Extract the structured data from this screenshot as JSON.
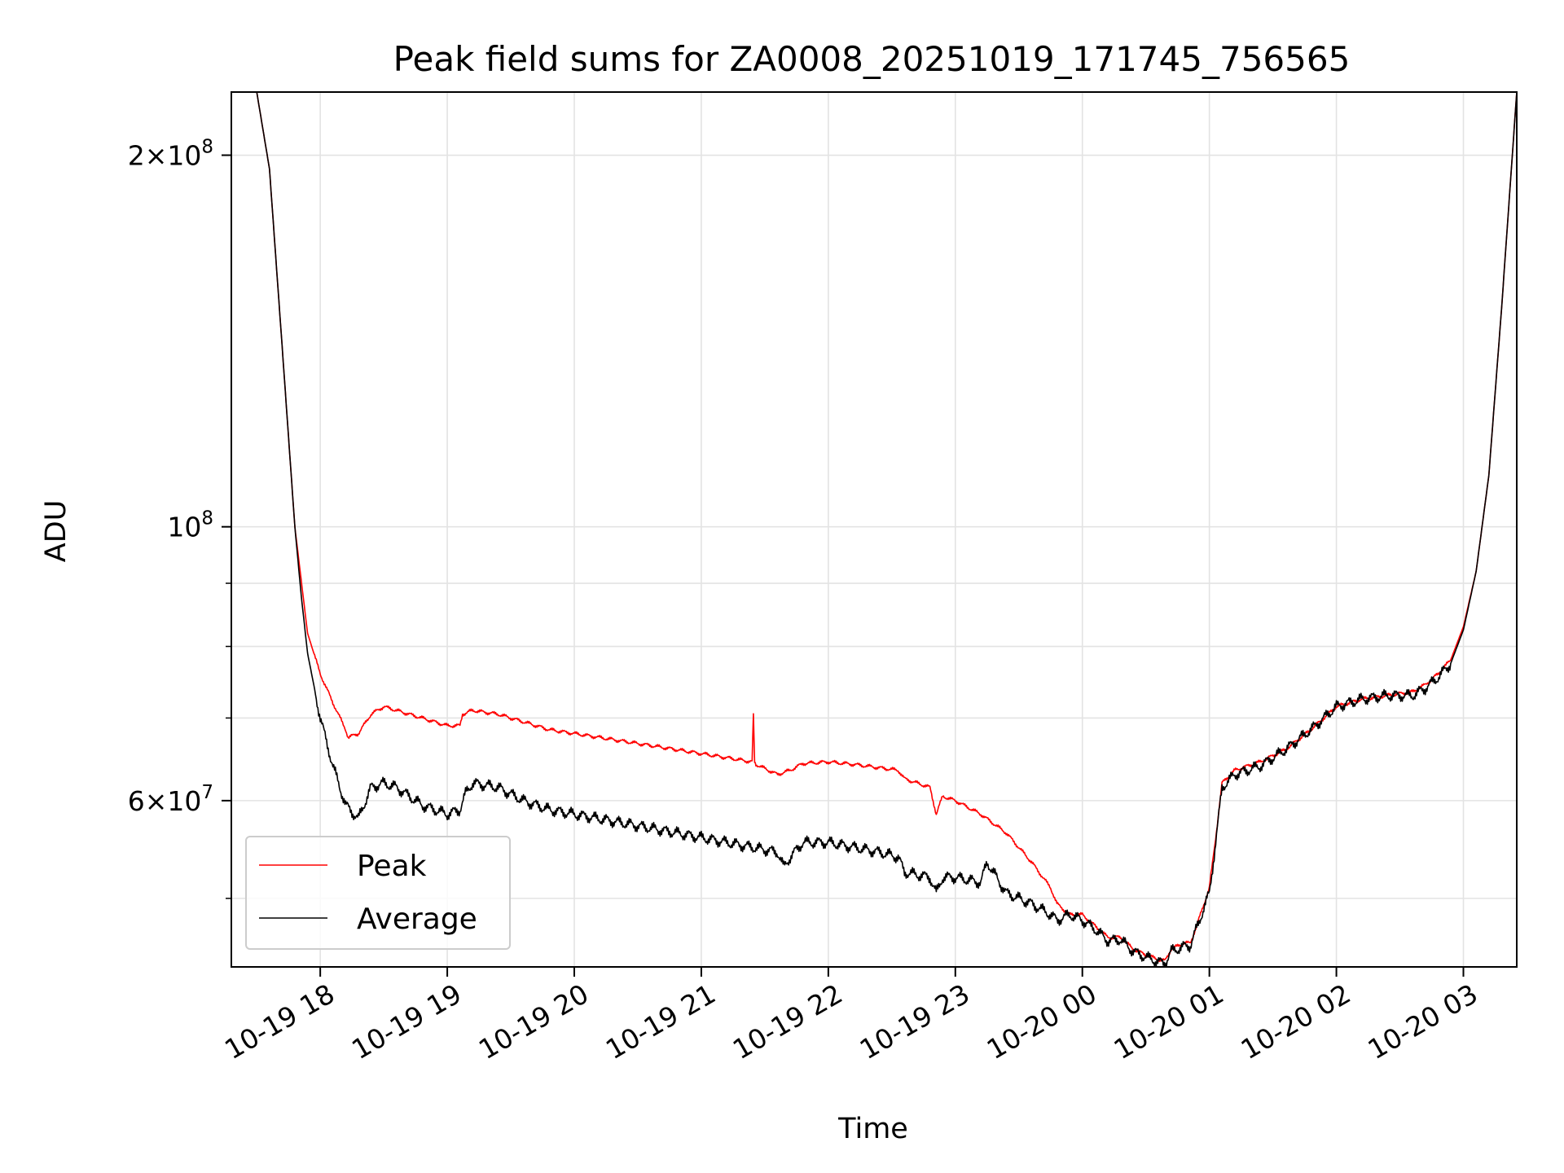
{
  "chart_data": {
    "type": "line",
    "title": "Peak field sums for ZA0008_20251019_171745_756565",
    "xlabel": "Time",
    "ylabel": "ADU",
    "yscale": "log",
    "grid": true,
    "legend_position": "lower-left",
    "x_unit": "hours since 2025-10-19 00:00",
    "xlim": [
      17.3,
      27.42
    ],
    "ylim": [
      44000000,
      225000000
    ],
    "x_ticks": [
      {
        "value": 18,
        "label": "10-19 18"
      },
      {
        "value": 19,
        "label": "10-19 19"
      },
      {
        "value": 20,
        "label": "10-19 20"
      },
      {
        "value": 21,
        "label": "10-19 21"
      },
      {
        "value": 22,
        "label": "10-19 22"
      },
      {
        "value": 23,
        "label": "10-19 23"
      },
      {
        "value": 24,
        "label": "10-20 00"
      },
      {
        "value": 25,
        "label": "10-20 01"
      },
      {
        "value": 26,
        "label": "10-20 02"
      },
      {
        "value": 27,
        "label": "10-20 03"
      }
    ],
    "y_ticks": [
      {
        "value": 200000000,
        "mantissa": "2",
        "times": "×",
        "base": "10",
        "exponent": "8"
      },
      {
        "value": 100000000,
        "mantissa": "",
        "times": "",
        "base": "10",
        "exponent": "8"
      },
      {
        "value": 60000000,
        "mantissa": "6",
        "times": "×",
        "base": "10",
        "exponent": "7"
      }
    ],
    "y_minor_ticks": [
      50000000,
      70000000,
      80000000,
      90000000
    ],
    "series": [
      {
        "name": "Peak",
        "color": "#ff0000",
        "x": [
          17.3,
          17.5,
          17.6,
          17.7,
          17.8,
          17.9,
          18.0,
          18.1,
          18.2,
          18.22,
          18.3,
          18.4,
          18.5,
          18.6,
          18.7,
          18.8,
          18.9,
          19.0,
          19.1,
          19.12,
          19.2,
          19.4,
          19.6,
          19.8,
          20.0,
          20.2,
          20.4,
          20.6,
          20.8,
          21.0,
          21.2,
          21.4,
          21.41,
          21.42,
          21.43,
          21.6,
          21.7,
          21.8,
          22.0,
          22.2,
          22.4,
          22.55,
          22.6,
          22.8,
          22.85,
          22.9,
          23.0,
          23.2,
          23.4,
          23.6,
          23.75,
          23.8,
          23.9,
          24.0,
          24.1,
          24.2,
          24.3,
          24.4,
          24.5,
          24.6,
          24.65,
          24.7,
          24.8,
          24.85,
          24.9,
          25.0,
          25.05,
          25.1,
          25.2,
          25.4,
          25.6,
          25.8,
          26.0,
          26.2,
          26.4,
          26.6,
          26.7,
          26.8,
          26.9,
          27.0,
          27.1,
          27.2,
          27.3,
          27.42
        ],
        "y": [
          225000000,
          225000000,
          195000000,
          140000000,
          100000000,
          82000000,
          76000000,
          72000000,
          68500000,
          67500000,
          68000000,
          70500000,
          71500000,
          71000000,
          70500000,
          70000000,
          69500000,
          69000000,
          69000000,
          70500000,
          71000000,
          70500000,
          69500000,
          68500000,
          68000000,
          67500000,
          67000000,
          66500000,
          66000000,
          65500000,
          65000000,
          64500000,
          70500000,
          64500000,
          64200000,
          63000000,
          63500000,
          64300000,
          64500000,
          64200000,
          63800000,
          63500000,
          62500000,
          61500000,
          58500000,
          60500000,
          60000000,
          58500000,
          56500000,
          53500000,
          51000000,
          49500000,
          48500000,
          48500000,
          47500000,
          46500000,
          46500000,
          45500000,
          45000000,
          44600000,
          44500000,
          45500000,
          46000000,
          46000000,
          47500000,
          51000000,
          56000000,
          62000000,
          63500000,
          64500000,
          66000000,
          68500000,
          71500000,
          72500000,
          73000000,
          73500000,
          74500000,
          76000000,
          78000000,
          83000000,
          92000000,
          110000000,
          150000000,
          225000000
        ]
      },
      {
        "name": "Average",
        "color": "#000000",
        "x": [
          17.3,
          17.5,
          17.6,
          17.7,
          17.8,
          17.85,
          17.9,
          18.0,
          18.1,
          18.2,
          18.3,
          18.4,
          18.5,
          18.6,
          18.7,
          18.8,
          18.9,
          19.0,
          19.1,
          19.15,
          19.2,
          19.4,
          19.6,
          19.8,
          20.0,
          20.2,
          20.4,
          20.6,
          20.8,
          21.0,
          21.2,
          21.4,
          21.6,
          21.65,
          21.7,
          21.8,
          22.0,
          22.2,
          22.4,
          22.55,
          22.6,
          22.8,
          22.85,
          22.9,
          23.0,
          23.2,
          23.25,
          23.4,
          23.6,
          23.75,
          23.8,
          23.9,
          24.0,
          24.1,
          24.2,
          24.3,
          24.4,
          24.5,
          24.6,
          24.65,
          24.7,
          24.8,
          24.85,
          24.9,
          25.0,
          25.05,
          25.1,
          25.2,
          25.4,
          25.6,
          25.8,
          26.0,
          26.2,
          26.4,
          26.6,
          26.7,
          26.8,
          26.9,
          27.0,
          27.1,
          27.2,
          27.3,
          27.42
        ],
        "y": [
          225000000,
          225000000,
          195000000,
          140000000,
          100000000,
          88000000,
          79000000,
          70000000,
          64000000,
          59500000,
          58000000,
          61500000,
          62000000,
          61500000,
          60500000,
          59500000,
          59000000,
          58500000,
          59000000,
          61000000,
          62000000,
          61500000,
          60000000,
          59000000,
          58500000,
          58000000,
          57500000,
          57000000,
          56500000,
          56000000,
          55500000,
          55000000,
          54500000,
          53000000,
          54000000,
          55500000,
          55500000,
          55000000,
          54500000,
          54000000,
          52500000,
          52000000,
          50500000,
          52000000,
          52000000,
          51500000,
          53500000,
          50500000,
          49500000,
          48500000,
          48000000,
          48500000,
          48000000,
          47200000,
          46200000,
          46300000,
          45300000,
          44800000,
          44400000,
          44300000,
          45300000,
          45700000,
          45800000,
          47300000,
          50500000,
          55500000,
          61500000,
          63000000,
          64000000,
          66000000,
          68500000,
          71500000,
          72500000,
          73000000,
          73000000,
          74000000,
          75500000,
          77500000,
          82500000,
          92000000,
          110000000,
          150000000,
          225000000
        ]
      }
    ]
  }
}
